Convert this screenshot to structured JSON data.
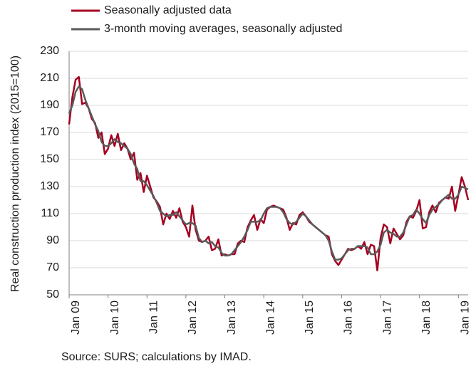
{
  "chart_data": {
    "type": "line",
    "y_label": "Real construction production index (2015=100)",
    "source": "Source: SURS; calculations by IMAD.",
    "ylim": [
      50,
      230
    ],
    "yticks": [
      50,
      70,
      90,
      110,
      130,
      150,
      170,
      190,
      210,
      230
    ],
    "grid": true,
    "legend": "top",
    "categories": [
      "Jan 09",
      null,
      null,
      null,
      null,
      null,
      null,
      null,
      null,
      null,
      null,
      null,
      "Jan 10",
      null,
      null,
      null,
      null,
      null,
      null,
      null,
      null,
      null,
      null,
      null,
      "Jan 11",
      null,
      null,
      null,
      null,
      null,
      null,
      null,
      null,
      null,
      null,
      null,
      "Jan 12",
      null,
      null,
      null,
      null,
      null,
      null,
      null,
      null,
      null,
      null,
      null,
      "Jan 13",
      null,
      null,
      null,
      null,
      null,
      null,
      null,
      null,
      null,
      null,
      null,
      "Jan 14",
      null,
      null,
      null,
      null,
      null,
      null,
      null,
      null,
      null,
      null,
      null,
      "Jan 15",
      null,
      null,
      null,
      null,
      null,
      null,
      null,
      null,
      null,
      null,
      null,
      "Jan 16",
      null,
      null,
      null,
      null,
      null,
      null,
      null,
      null,
      null,
      null,
      null,
      "Jan 17",
      null,
      null,
      null,
      null,
      null,
      null,
      null,
      null,
      null,
      null,
      null,
      "Jan 18",
      null,
      null,
      null,
      null,
      null,
      null,
      null,
      null,
      null,
      null,
      null,
      "Jan 19",
      null,
      null,
      null
    ],
    "series": [
      {
        "name": "Seasonally adjusted data",
        "color": "#a50021",
        "values": [
          176,
          196,
          209,
          211,
          191,
          192,
          188,
          180,
          177,
          166,
          170,
          154,
          158,
          168,
          160,
          169,
          157,
          162,
          158,
          150,
          155,
          135,
          140,
          126,
          138,
          130,
          122,
          119,
          115,
          102,
          110,
          106,
          112,
          107,
          114,
          104,
          100,
          93,
          116,
          98,
          90,
          89,
          90,
          93,
          83,
          84,
          91,
          79,
          80,
          79,
          80,
          80,
          88,
          90,
          89,
          100,
          105,
          109,
          98,
          106,
          103,
          113,
          115,
          116,
          115,
          114,
          113,
          107,
          98,
          103,
          102,
          109,
          111,
          108,
          104,
          102,
          100,
          98,
          96,
          94,
          93,
          80,
          75,
          72,
          76,
          80,
          84,
          83,
          84,
          86,
          84,
          89,
          80,
          87,
          86,
          68,
          92,
          102,
          100,
          88,
          99,
          95,
          91,
          94,
          104,
          108,
          107,
          112,
          120,
          99,
          100,
          111,
          116,
          111,
          118,
          120,
          122,
          121,
          130,
          112,
          124,
          137,
          130,
          120
        ]
      },
      {
        "name": "3-month moving averages, seasonally adjusted",
        "color": "#5a5a5a",
        "values": [
          184,
          190,
          200,
          204,
          202,
          194,
          188,
          182,
          176,
          171,
          163,
          160,
          160,
          162,
          165,
          163,
          162,
          160,
          158,
          154,
          147,
          143,
          134,
          134,
          131,
          127,
          123,
          118,
          112,
          110,
          108,
          109,
          109,
          111,
          108,
          105,
          102,
          103,
          103,
          101,
          92,
          89,
          90,
          88,
          89,
          86,
          85,
          81,
          79,
          79,
          80,
          83,
          86,
          89,
          93,
          98,
          104,
          104,
          104,
          105,
          110,
          114,
          115,
          115,
          115,
          114,
          111,
          106,
          103,
          102,
          104,
          107,
          110,
          108,
          105,
          102,
          100,
          98,
          96,
          94,
          90,
          82,
          76,
          76,
          77,
          80,
          83,
          84,
          84,
          86,
          86,
          86,
          85,
          80,
          80,
          82,
          87,
          96,
          98,
          96,
          95,
          93,
          93,
          96,
          102,
          108,
          109,
          113,
          110,
          106,
          103,
          109,
          113,
          115,
          117,
          120,
          122,
          124,
          121,
          121,
          124,
          130,
          129,
          128
        ]
      }
    ]
  }
}
